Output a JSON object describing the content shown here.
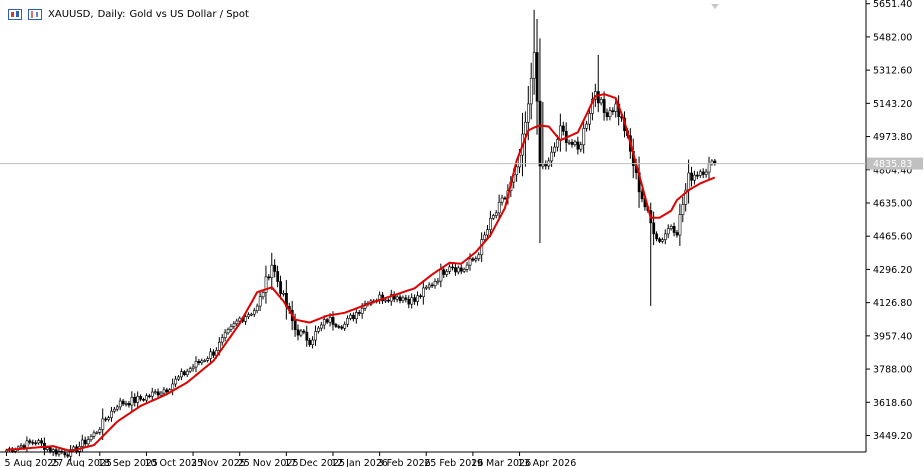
{
  "header": {
    "symbol": "XAUUSD",
    "timeframe": "Daily:",
    "description": "Gold vs US Dollar / Spot",
    "icons": [
      "candlestick-chart-icon",
      "bar-chart-icon"
    ]
  },
  "colors": {
    "background": "#ffffff",
    "candle": "#000000",
    "moving_average": "#e00000",
    "price_line": "#c0c0c0",
    "price_label_bg": "#c0c0c0",
    "price_label_text": "#ffffff"
  },
  "current_price_label": "4835.83",
  "chart_data": {
    "type": "candlestick",
    "title": "",
    "ylim": [
      3365,
      5660
    ],
    "y_ticks": [
      "5651.40",
      "5482.00",
      "5312.60",
      "5143.20",
      "4973.80",
      "4804.40",
      "4635.00",
      "4465.60",
      "4296.20",
      "4126.80",
      "3957.40",
      "3788.00",
      "3618.60",
      "3449.20"
    ],
    "x_ticks": [
      "5 Aug 2025",
      "27 Aug 2025",
      "18 Sep 2025",
      "10 Oct 2025",
      "3 Nov 2025",
      "25 Nov 2025",
      "17 Dec 2025",
      "12 Jan 2026",
      "3 Feb 2026",
      "25 Feb 2026",
      "19 Mar 2026",
      "13 Apr 2026"
    ],
    "series": [
      {
        "kind": "candles",
        "anchors": [
          [
            0,
            3375
          ],
          [
            10,
            3420
          ],
          [
            16,
            3370
          ],
          [
            22,
            3360
          ],
          [
            30,
            3455
          ],
          [
            38,
            3610
          ],
          [
            46,
            3635
          ],
          [
            55,
            3690
          ],
          [
            62,
            3780
          ],
          [
            71,
            3875
          ],
          [
            80,
            4045
          ],
          [
            86,
            4100
          ],
          [
            91,
            4325
          ],
          [
            95,
            4150
          ],
          [
            99,
            3990
          ],
          [
            104,
            3935
          ],
          [
            110,
            4040
          ],
          [
            116,
            4015
          ],
          [
            124,
            4140
          ],
          [
            133,
            4165
          ],
          [
            140,
            4135
          ],
          [
            146,
            4225
          ],
          [
            152,
            4325
          ],
          [
            156,
            4290
          ],
          [
            161,
            4355
          ],
          [
            166,
            4535
          ],
          [
            171,
            4665
          ],
          [
            175,
            4795
          ],
          [
            179,
            5120
          ],
          [
            181,
            5430
          ],
          [
            183,
            4820
          ],
          [
            186,
            4835
          ],
          [
            190,
            5005
          ],
          [
            196,
            4900
          ],
          [
            202,
            5215
          ],
          [
            205,
            5095
          ],
          [
            209,
            5130
          ],
          [
            212,
            5015
          ],
          [
            217,
            4710
          ],
          [
            221,
            4530
          ],
          [
            224,
            4440
          ],
          [
            228,
            4525
          ],
          [
            230,
            4495
          ],
          [
            234,
            4765
          ],
          [
            238,
            4800
          ],
          [
            243,
            4835.83
          ]
        ],
        "ma_anchors": [
          [
            0,
            3375
          ],
          [
            16,
            3395
          ],
          [
            22,
            3370
          ],
          [
            30,
            3400
          ],
          [
            38,
            3520
          ],
          [
            46,
            3600
          ],
          [
            55,
            3660
          ],
          [
            62,
            3720
          ],
          [
            71,
            3830
          ],
          [
            80,
            4020
          ],
          [
            86,
            4180
          ],
          [
            91,
            4205
          ],
          [
            95,
            4135
          ],
          [
            99,
            4040
          ],
          [
            104,
            4025
          ],
          [
            110,
            4060
          ],
          [
            116,
            4075
          ],
          [
            124,
            4120
          ],
          [
            133,
            4165
          ],
          [
            140,
            4200
          ],
          [
            146,
            4270
          ],
          [
            152,
            4330
          ],
          [
            156,
            4325
          ],
          [
            161,
            4385
          ],
          [
            166,
            4470
          ],
          [
            171,
            4610
          ],
          [
            175,
            4850
          ],
          [
            179,
            5005
          ],
          [
            181,
            5020
          ],
          [
            183,
            5030
          ],
          [
            186,
            5025
          ],
          [
            190,
            4955
          ],
          [
            196,
            4995
          ],
          [
            202,
            5180
          ],
          [
            205,
            5190
          ],
          [
            209,
            5170
          ],
          [
            212,
            5050
          ],
          [
            217,
            4780
          ],
          [
            221,
            4560
          ],
          [
            224,
            4560
          ],
          [
            228,
            4595
          ],
          [
            230,
            4650
          ],
          [
            234,
            4700
          ],
          [
            238,
            4735
          ],
          [
            243,
            4765
          ]
        ]
      }
    ]
  }
}
